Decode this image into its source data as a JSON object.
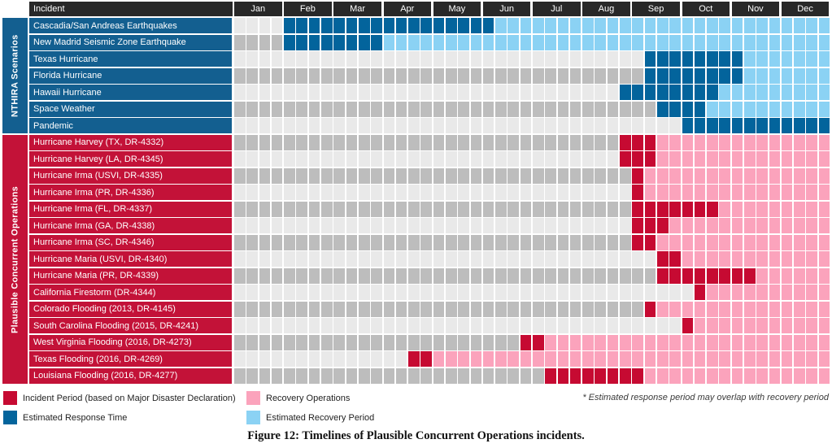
{
  "header": {
    "incident": "Incident"
  },
  "sidebar": {
    "groups": [
      {
        "key": "nthira",
        "label": "NTHIRA Scenarios",
        "from": 0,
        "to": 6,
        "colorKey": "groupBlue"
      },
      {
        "key": "pco",
        "label": "Plausible Concurrent Operations",
        "from": 7,
        "to": 21,
        "colorKey": "groupRed"
      }
    ]
  },
  "legend": {
    "items": [
      {
        "key": "incident",
        "label": "Incident Period (based on Major Disaster Declaration)"
      },
      {
        "key": "recovery",
        "label": "Recovery Operations"
      },
      {
        "key": "response",
        "label": "Estimated Response Time"
      },
      {
        "key": "recoveryEst",
        "label": "Estimated Recovery Period"
      }
    ],
    "note": "* Estimated response period may overlap with recovery period"
  },
  "caption": "Figure 12: Timelines of Plausible Concurrent Operations incidents.",
  "colors": {
    "incident": "#C60A32",
    "recovery": "#FBA3BC",
    "response": "#03649C",
    "recoveryEst": "#8BD2F4",
    "cellLight": "#E9E9E9",
    "cellDark": "#BDBDBD",
    "headerBar": "#282828",
    "groupBlue": "#135F90",
    "groupRed": "#C31238"
  },
  "chart_data": {
    "type": "bar",
    "variant": "gantt-timeline",
    "months": [
      "Jan",
      "Feb",
      "Mar",
      "Apr",
      "May",
      "Jun",
      "Jul",
      "Aug",
      "Sep",
      "Oct",
      "Nov",
      "Dec"
    ],
    "weeks_per_month": 4,
    "week_index_range": [
      0,
      47
    ],
    "legend_kinds": {
      "incident": "Incident Period (based on Major Disaster Declaration)",
      "recovery": "Recovery Operations",
      "response": "Estimated Response Time",
      "recoveryEst": "Estimated Recovery Period"
    },
    "rows": [
      {
        "group": "nthira",
        "label": "Cascadia/San Andreas Earthquakes",
        "segments": [
          {
            "kind": "response",
            "from": 4,
            "to": 20
          },
          {
            "kind": "recoveryEst",
            "from": 21,
            "to": 47
          }
        ]
      },
      {
        "group": "nthira",
        "label": "New Madrid Seismic Zone Earthquake",
        "segments": [
          {
            "kind": "response",
            "from": 4,
            "to": 11
          },
          {
            "kind": "recoveryEst",
            "from": 12,
            "to": 47
          }
        ]
      },
      {
        "group": "nthira",
        "label": "Texas Hurricane",
        "segments": [
          {
            "kind": "response",
            "from": 33,
            "to": 40
          },
          {
            "kind": "recoveryEst",
            "from": 41,
            "to": 47
          }
        ]
      },
      {
        "group": "nthira",
        "label": "Florida Hurricane",
        "segments": [
          {
            "kind": "response",
            "from": 33,
            "to": 40
          },
          {
            "kind": "recoveryEst",
            "from": 41,
            "to": 47
          }
        ]
      },
      {
        "group": "nthira",
        "label": "Hawaii Hurricane",
        "segments": [
          {
            "kind": "response",
            "from": 31,
            "to": 38
          },
          {
            "kind": "recoveryEst",
            "from": 39,
            "to": 47
          }
        ]
      },
      {
        "group": "nthira",
        "label": "Space Weather",
        "segments": [
          {
            "kind": "response",
            "from": 34,
            "to": 37
          },
          {
            "kind": "recoveryEst",
            "from": 38,
            "to": 47
          }
        ]
      },
      {
        "group": "nthira",
        "label": "Pandemic",
        "segments": [
          {
            "kind": "response",
            "from": 36,
            "to": 47
          }
        ]
      },
      {
        "group": "pco",
        "label": "Hurricane Harvey (TX, DR-4332)",
        "segments": [
          {
            "kind": "incident",
            "from": 31,
            "to": 33
          },
          {
            "kind": "recovery",
            "from": 34,
            "to": 47
          }
        ]
      },
      {
        "group": "pco",
        "label": "Hurricane Harvey (LA, DR-4345)",
        "segments": [
          {
            "kind": "incident",
            "from": 31,
            "to": 33
          },
          {
            "kind": "recovery",
            "from": 34,
            "to": 47
          }
        ]
      },
      {
        "group": "pco",
        "label": "Hurricane Irma (USVI, DR-4335)",
        "segments": [
          {
            "kind": "incident",
            "from": 32,
            "to": 32
          },
          {
            "kind": "recovery",
            "from": 33,
            "to": 47
          }
        ]
      },
      {
        "group": "pco",
        "label": "Hurricane Irma (PR, DR-4336)",
        "segments": [
          {
            "kind": "incident",
            "from": 32,
            "to": 32
          },
          {
            "kind": "recovery",
            "from": 33,
            "to": 47
          }
        ]
      },
      {
        "group": "pco",
        "label": "Hurricane Irma (FL, DR-4337)",
        "segments": [
          {
            "kind": "incident",
            "from": 32,
            "to": 38
          },
          {
            "kind": "recovery",
            "from": 39,
            "to": 47
          }
        ]
      },
      {
        "group": "pco",
        "label": "Hurricane Irma (GA, DR-4338)",
        "segments": [
          {
            "kind": "incident",
            "from": 32,
            "to": 34
          },
          {
            "kind": "recovery",
            "from": 35,
            "to": 47
          }
        ]
      },
      {
        "group": "pco",
        "label": "Hurricane Irma (SC, DR-4346)",
        "segments": [
          {
            "kind": "incident",
            "from": 32,
            "to": 33
          },
          {
            "kind": "recovery",
            "from": 34,
            "to": 47
          }
        ]
      },
      {
        "group": "pco",
        "label": "Hurricane Maria (USVI, DR-4340)",
        "segments": [
          {
            "kind": "incident",
            "from": 34,
            "to": 35
          },
          {
            "kind": "recovery",
            "from": 36,
            "to": 47
          }
        ]
      },
      {
        "group": "pco",
        "label": "Hurricane Maria (PR, DR-4339)",
        "segments": [
          {
            "kind": "incident",
            "from": 34,
            "to": 41
          },
          {
            "kind": "recovery",
            "from": 42,
            "to": 47
          }
        ]
      },
      {
        "group": "pco",
        "label": "California Firestorm (DR-4344)",
        "segments": [
          {
            "kind": "incident",
            "from": 37,
            "to": 37
          },
          {
            "kind": "recovery",
            "from": 38,
            "to": 47
          }
        ]
      },
      {
        "group": "pco",
        "label": "Colorado Flooding (2013, DR-4145)",
        "segments": [
          {
            "kind": "incident",
            "from": 33,
            "to": 33
          },
          {
            "kind": "recovery",
            "from": 34,
            "to": 47
          }
        ]
      },
      {
        "group": "pco",
        "label": "South Carolina Flooding (2015, DR-4241)",
        "segments": [
          {
            "kind": "incident",
            "from": 36,
            "to": 36
          },
          {
            "kind": "recovery",
            "from": 37,
            "to": 47
          }
        ]
      },
      {
        "group": "pco",
        "label": "West Virginia Flooding (2016, DR-4273)",
        "segments": [
          {
            "kind": "incident",
            "from": 23,
            "to": 24
          },
          {
            "kind": "recovery",
            "from": 25,
            "to": 47
          }
        ]
      },
      {
        "group": "pco",
        "label": "Texas Flooding (2016, DR-4269)",
        "segments": [
          {
            "kind": "incident",
            "from": 14,
            "to": 15
          },
          {
            "kind": "recovery",
            "from": 16,
            "to": 47
          }
        ]
      },
      {
        "group": "pco",
        "label": "Louisiana Flooding (2016, DR-4277)",
        "segments": [
          {
            "kind": "incident",
            "from": 25,
            "to": 32
          },
          {
            "kind": "recovery",
            "from": 33,
            "to": 47
          }
        ]
      }
    ]
  }
}
